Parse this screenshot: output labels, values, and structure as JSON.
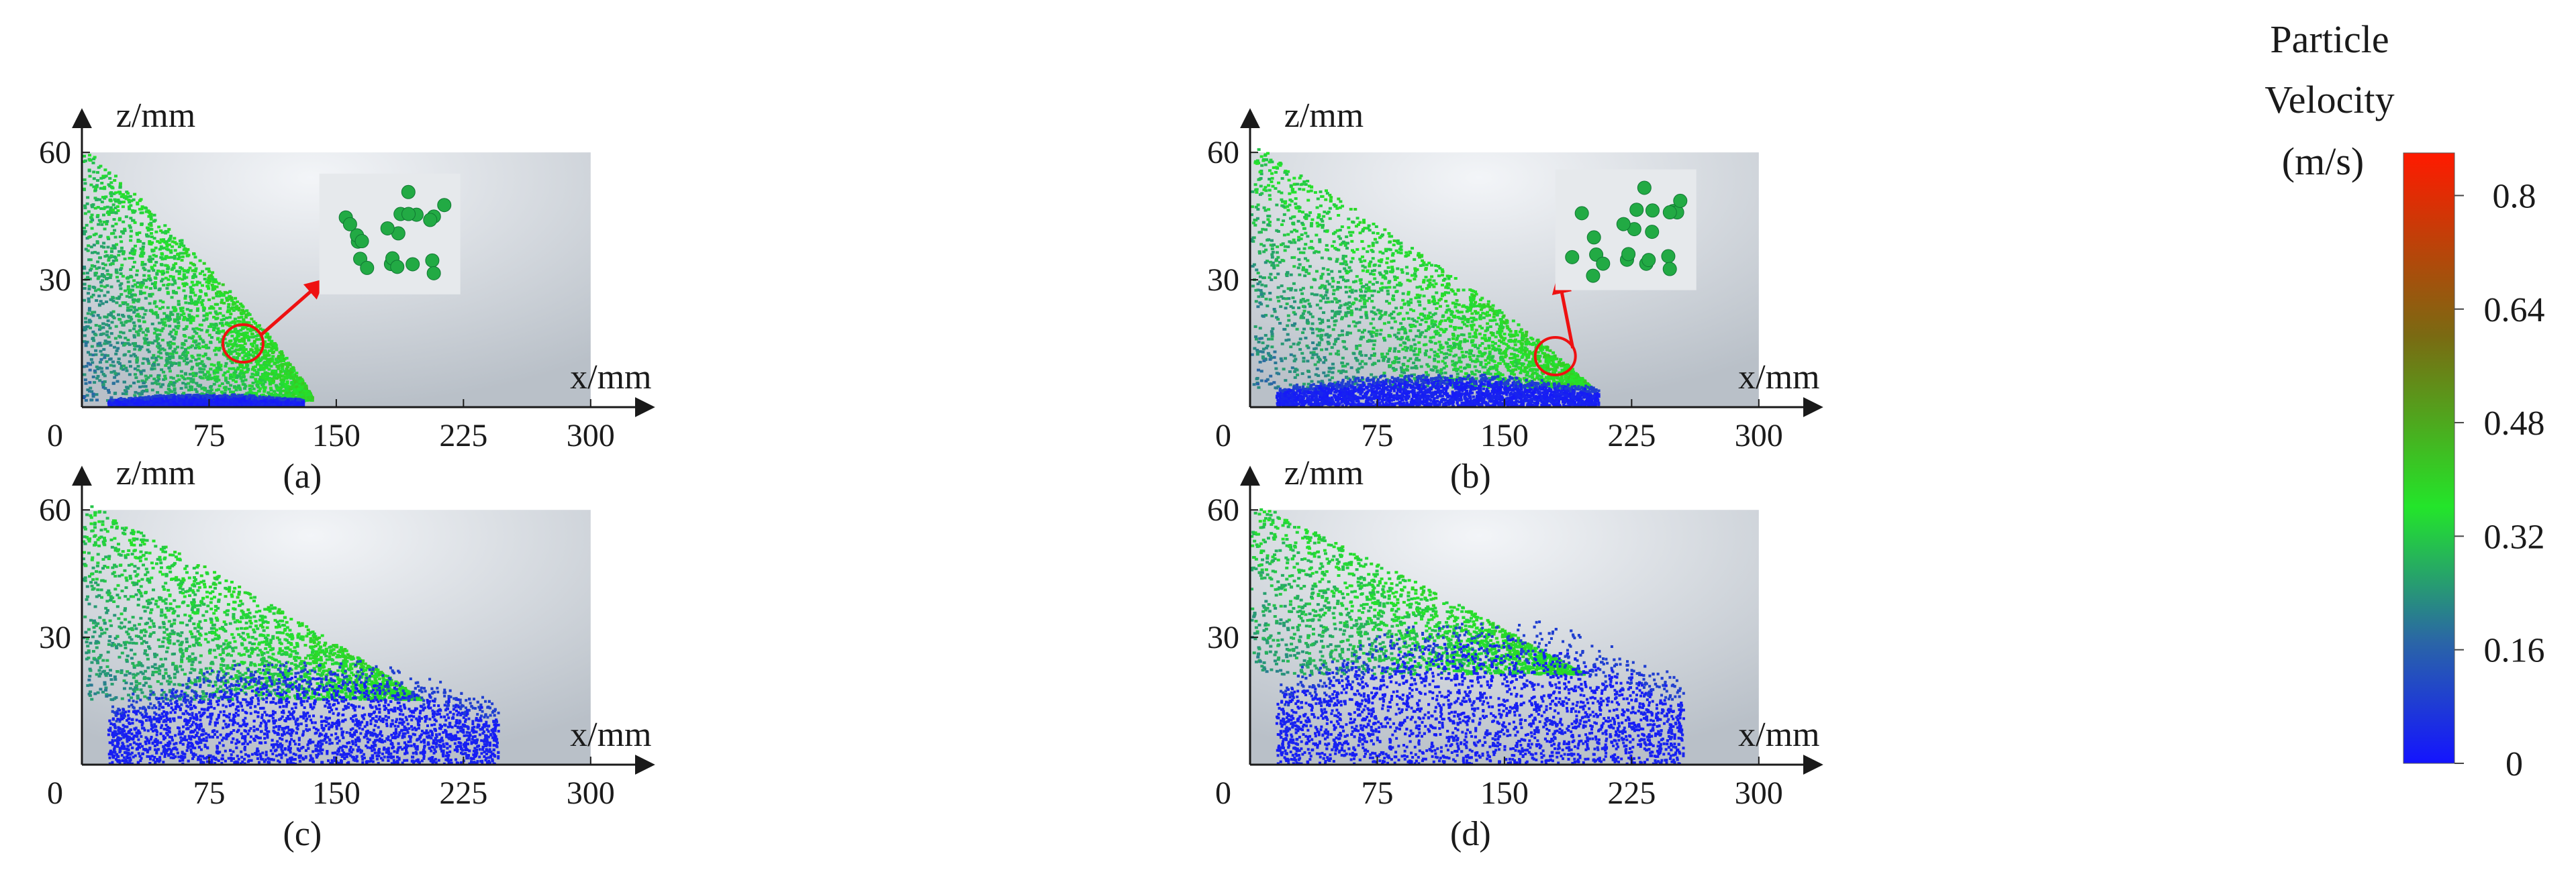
{
  "colorbar": {
    "title_lines": [
      "Particle",
      "Velocity",
      "(m/s)"
    ],
    "ticks": [
      {
        "value": 0.8,
        "label": "0.8"
      },
      {
        "value": 0.64,
        "label": "0.64"
      },
      {
        "value": 0.48,
        "label": "0.48"
      },
      {
        "value": 0.32,
        "label": "0.32"
      },
      {
        "value": 0.16,
        "label": "0.16"
      },
      {
        "value": 0,
        "label": "0"
      }
    ],
    "range": [
      0,
      0.86
    ],
    "colors": [
      "#1414ff",
      "#2a66a6",
      "#23e52a",
      "#7a6a12",
      "#ff1a00"
    ]
  },
  "axes": {
    "x_label": "x/mm",
    "z_label": "z/mm",
    "x_ticks": [
      {
        "value": 75,
        "label": "75"
      },
      {
        "value": 150,
        "label": "150"
      },
      {
        "value": 225,
        "label": "225"
      },
      {
        "value": 300,
        "label": "300"
      }
    ],
    "z_ticks": [
      {
        "value": 30,
        "label": "30"
      },
      {
        "value": 60,
        "label": "60"
      }
    ],
    "origin_label": "0",
    "x_range": [
      0,
      300
    ],
    "z_range": [
      0,
      60
    ]
  },
  "panels": [
    {
      "label": "(a)",
      "front_x": 135,
      "deposit_front_x": 130,
      "deposit_height": 3,
      "inset": true
    },
    {
      "label": "(b)",
      "front_x": 205,
      "deposit_front_x": 205,
      "deposit_height": 8,
      "inset": true
    },
    {
      "label": "(c)",
      "front_x": 240,
      "deposit_front_x": 245,
      "deposit_height": 26,
      "inset": false
    },
    {
      "label": "(d)",
      "front_x": 265,
      "deposit_front_x": 255,
      "deposit_height": 36,
      "inset": false
    }
  ]
}
